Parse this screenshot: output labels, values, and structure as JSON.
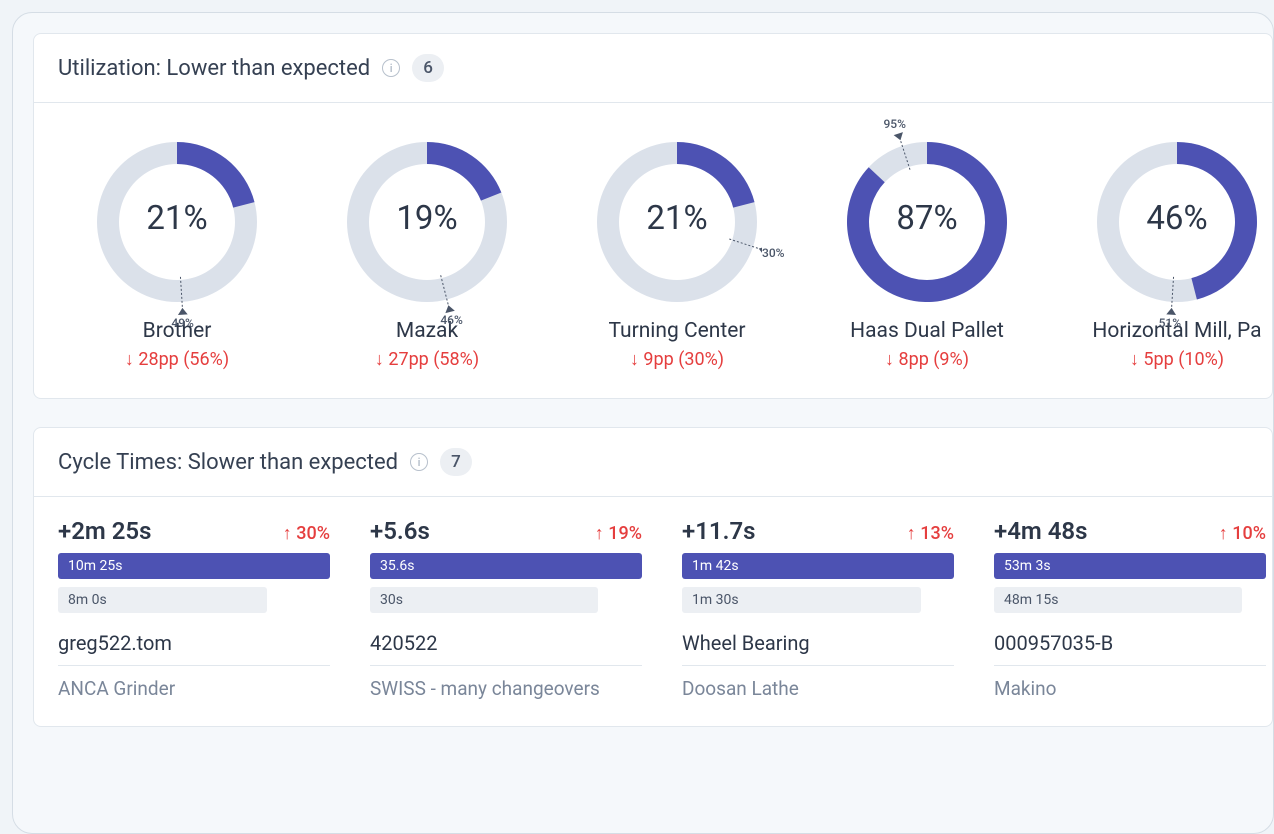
{
  "colors": {
    "donut_bg": "#dbe1ea",
    "donut_fg": "#4d52b3",
    "delta_red": "#e53e3e",
    "text_primary": "#2d3748",
    "text_muted": "#7a8699",
    "panel_border": "#e1e7ed",
    "badge_bg": "#eceff3",
    "bar_actual": "#4d52b3",
    "bar_expected_bg": "#eceff3"
  },
  "utilization": {
    "title": "Utilization: Lower than expected",
    "count": "6",
    "donut": {
      "outer_radius": 80,
      "inner_radius": 58,
      "start_angle_deg": 0
    },
    "items": [
      {
        "pct": 21,
        "pct_label": "21%",
        "target": 49,
        "target_label": "49%",
        "name": "Brother",
        "delta": "↓ 28pp (56%)",
        "marker_pos": "bottom"
      },
      {
        "pct": 19,
        "pct_label": "19%",
        "target": 46,
        "target_label": "46%",
        "name": "Mazak",
        "delta": "↓ 27pp (58%)",
        "marker_pos": "bottom"
      },
      {
        "pct": 21,
        "pct_label": "21%",
        "target": 30,
        "target_label": "30%",
        "name": "Turning Center",
        "delta": "↓ 9pp (30%)",
        "marker_pos": "right"
      },
      {
        "pct": 87,
        "pct_label": "87%",
        "target": 95,
        "target_label": "95%",
        "name": "Haas Dual Pallet",
        "delta": "↓ 8pp (9%)",
        "marker_pos": "top"
      },
      {
        "pct": 46,
        "pct_label": "46%",
        "target": 51,
        "target_label": "51%",
        "name": "Horizontal Mill, Pa",
        "delta": "↓ 5pp (10%)",
        "marker_pos": "bottom"
      }
    ]
  },
  "cycle": {
    "title": "Cycle Times: Slower than expected",
    "count": "7",
    "items": [
      {
        "delta_time": "+2m 25s",
        "delta_pct": "↑ 30%",
        "actual": "10m 25s",
        "expected": "8m 0s",
        "expected_ratio": 0.77,
        "part": "greg522.tom",
        "machine": "ANCA Grinder"
      },
      {
        "delta_time": "+5.6s",
        "delta_pct": "↑ 19%",
        "actual": "35.6s",
        "expected": "30s",
        "expected_ratio": 0.84,
        "part": "420522",
        "machine": "SWISS - many changeovers"
      },
      {
        "delta_time": "+11.7s",
        "delta_pct": "↑ 13%",
        "actual": "1m 42s",
        "expected": "1m 30s",
        "expected_ratio": 0.88,
        "part": "Wheel Bearing",
        "machine": "Doosan Lathe"
      },
      {
        "delta_time": "+4m 48s",
        "delta_pct": "↑ 10%",
        "actual": "53m 3s",
        "expected": "48m 15s",
        "expected_ratio": 0.91,
        "part": "000957035-B",
        "machine": "Makino"
      }
    ]
  }
}
